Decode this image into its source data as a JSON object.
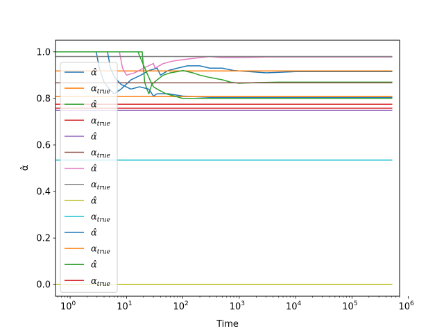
{
  "chart_data": {
    "type": "line",
    "xlabel": "Time",
    "ylabel": "α̂",
    "xscale": "log",
    "xlim": [
      0.55,
      700000
    ],
    "ylim": [
      -0.05,
      1.05
    ],
    "xticks": [
      {
        "value": 1,
        "base": "10",
        "exp": "0"
      },
      {
        "value": 10,
        "base": "10",
        "exp": "1"
      },
      {
        "value": 100,
        "base": "10",
        "exp": "2"
      },
      {
        "value": 1000,
        "base": "10",
        "exp": "3"
      },
      {
        "value": 10000,
        "base": "10",
        "exp": "4"
      },
      {
        "value": 100000,
        "base": "10",
        "exp": "5"
      },
      {
        "value": 1000000,
        "base": "10",
        "exp": "6"
      }
    ],
    "yticks": [
      {
        "value": 0.0,
        "label": "0.0"
      },
      {
        "value": 0.2,
        "label": "0.2"
      },
      {
        "value": 0.4,
        "label": "0.4"
      },
      {
        "value": 0.6,
        "label": "0.6"
      },
      {
        "value": 0.8,
        "label": "0.8"
      },
      {
        "value": 1.0,
        "label": "1.0"
      }
    ],
    "legend": {
      "placement": "left",
      "entries": [
        {
          "label": "α̂",
          "color": "#1f77b4"
        },
        {
          "label": "α_true",
          "color": "#ff7f0e"
        },
        {
          "label": "α̂",
          "color": "#2ca02c"
        },
        {
          "label": "α_true",
          "color": "#d62728"
        },
        {
          "label": "α̂",
          "color": "#9467bd"
        },
        {
          "label": "α_true",
          "color": "#8c564b"
        },
        {
          "label": "α̂",
          "color": "#e377c2"
        },
        {
          "label": "α_true",
          "color": "#7f7f7f"
        },
        {
          "label": "α̂",
          "color": "#bcbd22"
        },
        {
          "label": "α_true",
          "color": "#17becf"
        },
        {
          "label": "α̂",
          "color": "#1f77b4"
        },
        {
          "label": "α_true",
          "color": "#ff7f0e"
        },
        {
          "label": "α̂",
          "color": "#2ca02c"
        },
        {
          "label": "α_true",
          "color": "#d62728"
        }
      ]
    },
    "series": [
      {
        "color": "#1f77b4",
        "points": [
          [
            0.55,
            1.0
          ],
          [
            2.9,
            1.0
          ],
          [
            3.3,
            0.93
          ],
          [
            4.0,
            0.87
          ],
          [
            5.0,
            0.84
          ],
          [
            6.0,
            0.82
          ],
          [
            8,
            0.84
          ],
          [
            12,
            0.88
          ],
          [
            18,
            0.9
          ],
          [
            25,
            0.92
          ],
          [
            35,
            0.93
          ],
          [
            40,
            0.9
          ],
          [
            55,
            0.92
          ],
          [
            80,
            0.93
          ],
          [
            120,
            0.94
          ],
          [
            200,
            0.94
          ],
          [
            300,
            0.93
          ],
          [
            500,
            0.93
          ],
          [
            800,
            0.92
          ],
          [
            1500,
            0.915
          ],
          [
            3000,
            0.91
          ],
          [
            10000,
            0.915
          ],
          [
            50000,
            0.915
          ],
          [
            520000,
            0.915
          ]
        ]
      },
      {
        "color": "#ff7f0e",
        "points": [
          [
            0.55,
            0.918
          ],
          [
            520000,
            0.918
          ]
        ]
      },
      {
        "color": "#2ca02c",
        "points": [
          [
            0.55,
            1.0
          ],
          [
            19,
            1.0
          ],
          [
            21,
            0.87
          ],
          [
            23,
            0.84
          ],
          [
            25,
            0.82
          ],
          [
            28,
            0.86
          ],
          [
            35,
            0.88
          ],
          [
            45,
            0.9
          ],
          [
            60,
            0.91
          ],
          [
            80,
            0.915
          ],
          [
            100,
            0.92
          ],
          [
            150,
            0.91
          ],
          [
            200,
            0.9
          ],
          [
            300,
            0.89
          ],
          [
            500,
            0.88
          ],
          [
            700,
            0.87
          ],
          [
            1000,
            0.865
          ],
          [
            2000,
            0.868
          ],
          [
            5000,
            0.87
          ],
          [
            20000,
            0.87
          ],
          [
            520000,
            0.87
          ]
        ]
      },
      {
        "color": "#d62728",
        "points": [
          [
            0.55,
            0.775
          ],
          [
            520000,
            0.775
          ]
        ]
      },
      {
        "color": "#9467bd",
        "points": [
          [
            0.55,
            0.748
          ],
          [
            520000,
            0.748
          ]
        ]
      },
      {
        "color": "#8c564b",
        "points": [
          [
            0.55,
            0.867
          ],
          [
            520000,
            0.867
          ]
        ]
      },
      {
        "color": "#e377c2",
        "points": [
          [
            0.55,
            1.0
          ],
          [
            7.5,
            1.0
          ],
          [
            8.5,
            0.93
          ],
          [
            10,
            0.9
          ],
          [
            14,
            0.91
          ],
          [
            20,
            0.93
          ],
          [
            30,
            0.95
          ],
          [
            32,
            0.93
          ],
          [
            45,
            0.95
          ],
          [
            65,
            0.96
          ],
          [
            90,
            0.965
          ],
          [
            130,
            0.97
          ],
          [
            200,
            0.975
          ],
          [
            300,
            0.98
          ],
          [
            500,
            0.975
          ],
          [
            1000,
            0.975
          ],
          [
            3000,
            0.978
          ],
          [
            10000,
            0.978
          ],
          [
            520000,
            0.978
          ]
        ]
      },
      {
        "color": "#7f7f7f",
        "points": [
          [
            0.55,
            0.98
          ],
          [
            520000,
            0.98
          ]
        ]
      },
      {
        "color": "#bcbd22",
        "points": [
          [
            0.55,
            0.0
          ],
          [
            520000,
            0.0
          ]
        ]
      },
      {
        "color": "#17becf",
        "points": [
          [
            0.55,
            0.535
          ],
          [
            520000,
            0.535
          ]
        ]
      },
      {
        "color": "#1f77b4",
        "points": [
          [
            0.55,
            1.0
          ],
          [
            4.6,
            1.0
          ],
          [
            5.2,
            0.93
          ],
          [
            6.2,
            0.89
          ],
          [
            8,
            0.86
          ],
          [
            12,
            0.84
          ],
          [
            17,
            0.85
          ],
          [
            25,
            0.84
          ],
          [
            30,
            0.81
          ],
          [
            35,
            0.82
          ],
          [
            55,
            0.82
          ],
          [
            100,
            0.81
          ],
          [
            300,
            0.805
          ],
          [
            1000,
            0.805
          ],
          [
            520000,
            0.805
          ]
        ]
      },
      {
        "color": "#ff7f0e",
        "points": [
          [
            0.55,
            0.808
          ],
          [
            520000,
            0.808
          ]
        ]
      },
      {
        "color": "#2ca02c",
        "points": [
          [
            0.55,
            1.0
          ],
          [
            16,
            1.0
          ],
          [
            18,
            0.97
          ],
          [
            22,
            0.92
          ],
          [
            26,
            0.88
          ],
          [
            30,
            0.85
          ],
          [
            35,
            0.84
          ],
          [
            50,
            0.82
          ],
          [
            100,
            0.8
          ],
          [
            1000,
            0.8
          ],
          [
            520000,
            0.8
          ]
        ]
      },
      {
        "color": "#d62728",
        "points": [
          [
            0.55,
            0.758
          ],
          [
            520000,
            0.758
          ]
        ]
      }
    ]
  }
}
